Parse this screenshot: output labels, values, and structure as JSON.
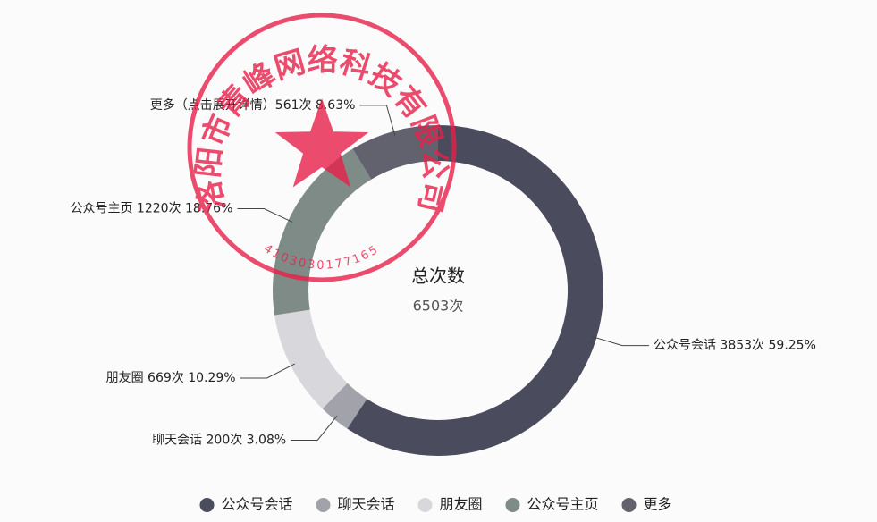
{
  "chart_data": {
    "type": "pie",
    "center_title": "总次数",
    "center_value": "6503次",
    "categories": [
      "公众号会话",
      "聊天会话",
      "朋友圈",
      "公众号主页",
      "更多"
    ],
    "values": [
      3853,
      200,
      669,
      1220,
      561
    ],
    "value_labels": [
      "公众号会话 3853次 59.25%",
      "聊天会话 200次 3.08%",
      "朋友圈 669次 10.29%",
      "公众号主页 1220次 18.76%",
      "更多（点击展开详情）561次 8.63%"
    ],
    "colors": [
      "#4a4b5c",
      "#a2a2aa",
      "#d8d8dc",
      "#7f8b87",
      "#62626e"
    ],
    "legend": "bottom"
  },
  "stamp": {
    "text": "洛阳市青峰网络科技有限公司",
    "code": "4103030177165"
  }
}
